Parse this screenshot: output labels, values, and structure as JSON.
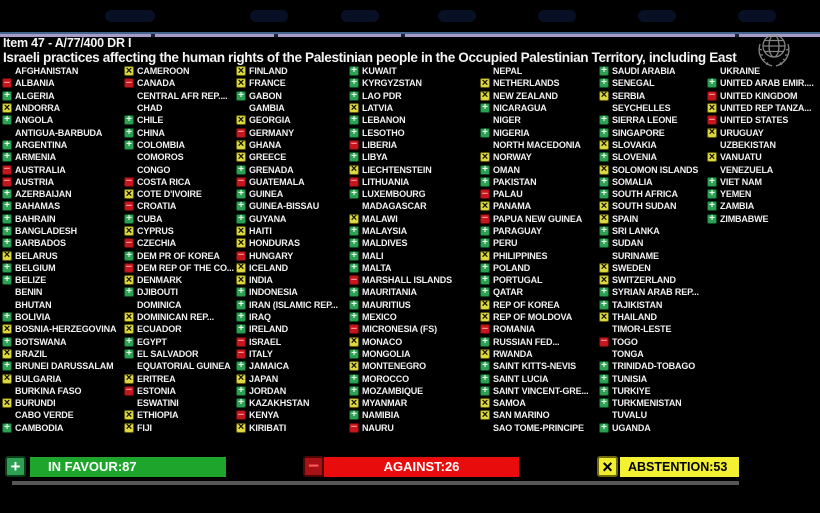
{
  "header": {
    "item_line": "Item 47 - A/77/400 DR I",
    "title_line": "Israeli practices affecting the human rights of the Palestinian people in the Occupied Palestinian Territory, including East"
  },
  "vote_legend": {
    "+": {
      "meaning": "in favour",
      "css": "favour",
      "glyph": "+",
      "color": "#2da153"
    },
    "-": {
      "meaning": "against",
      "css": "against",
      "glyph": "−",
      "color": "#c4161c"
    },
    "x": {
      "meaning": "abstention",
      "css": "abstain",
      "glyph": "×",
      "color": "#ddd83f"
    }
  },
  "columns": [
    [
      [
        "AFGHANISTAN",
        ""
      ],
      [
        "ALBANIA",
        "-"
      ],
      [
        "ALGERIA",
        "+"
      ],
      [
        "ANDORRA",
        "x"
      ],
      [
        "ANGOLA",
        "+"
      ],
      [
        "ANTIGUA-BARBUDA",
        ""
      ],
      [
        "ARGENTINA",
        "+"
      ],
      [
        "ARMENIA",
        "+"
      ],
      [
        "AUSTRALIA",
        "-"
      ],
      [
        "AUSTRIA",
        "-"
      ],
      [
        "AZERBAIJAN",
        "+"
      ],
      [
        "BAHAMAS",
        "+"
      ],
      [
        "BAHRAIN",
        "+"
      ],
      [
        "BANGLADESH",
        "+"
      ],
      [
        "BARBADOS",
        "+"
      ],
      [
        "BELARUS",
        "x"
      ],
      [
        "BELGIUM",
        "+"
      ],
      [
        "BELIZE",
        "+"
      ],
      [
        "BENIN",
        ""
      ],
      [
        "BHUTAN",
        ""
      ],
      [
        "BOLIVIA",
        "+"
      ],
      [
        "BOSNIA-HERZEGOVINA",
        "x"
      ],
      [
        "BOTSWANA",
        "+"
      ],
      [
        "BRAZIL",
        "x"
      ],
      [
        "BRUNEI DARUSSALAM",
        "+"
      ],
      [
        "BULGARIA",
        "x"
      ],
      [
        "BURKINA FASO",
        ""
      ],
      [
        "BURUNDI",
        "x"
      ],
      [
        "CABO VERDE",
        ""
      ],
      [
        "CAMBODIA",
        "+"
      ]
    ],
    [
      [
        "CAMEROON",
        "x"
      ],
      [
        "CANADA",
        "-"
      ],
      [
        "CENTRAL AFR REP....",
        ""
      ],
      [
        "CHAD",
        ""
      ],
      [
        "CHILE",
        "+"
      ],
      [
        "CHINA",
        "+"
      ],
      [
        "COLOMBIA",
        "+"
      ],
      [
        "COMOROS",
        ""
      ],
      [
        "CONGO",
        ""
      ],
      [
        "COSTA RICA",
        "-"
      ],
      [
        "COTE D'IVOIRE",
        "x"
      ],
      [
        "CROATIA",
        "-"
      ],
      [
        "CUBA",
        "+"
      ],
      [
        "CYPRUS",
        "x"
      ],
      [
        "CZECHIA",
        "-"
      ],
      [
        "DEM PR OF KOREA",
        "+"
      ],
      [
        "DEM REP OF THE CO...",
        "-"
      ],
      [
        "DENMARK",
        "x"
      ],
      [
        "DJIBOUTI",
        "+"
      ],
      [
        "DOMINICA",
        ""
      ],
      [
        "DOMINICAN REP...",
        "x"
      ],
      [
        "ECUADOR",
        "x"
      ],
      [
        "EGYPT",
        "+"
      ],
      [
        "EL SALVADOR",
        "+"
      ],
      [
        "EQUATORIAL GUINEA",
        ""
      ],
      [
        "ERITREA",
        "x"
      ],
      [
        "ESTONIA",
        "-"
      ],
      [
        "ESWATINI",
        ""
      ],
      [
        "ETHIOPIA",
        "x"
      ],
      [
        "FIJI",
        "x"
      ]
    ],
    [
      [
        "FINLAND",
        "x"
      ],
      [
        "FRANCE",
        "x"
      ],
      [
        "GABON",
        "+"
      ],
      [
        "GAMBIA",
        ""
      ],
      [
        "GEORGIA",
        "x"
      ],
      [
        "GERMANY",
        "-"
      ],
      [
        "GHANA",
        "x"
      ],
      [
        "GREECE",
        "x"
      ],
      [
        "GRENADA",
        "+"
      ],
      [
        "GUATEMALA",
        "-"
      ],
      [
        "GUINEA",
        "+"
      ],
      [
        "GUINEA-BISSAU",
        "+"
      ],
      [
        "GUYANA",
        "+"
      ],
      [
        "HAITI",
        "x"
      ],
      [
        "HONDURAS",
        "x"
      ],
      [
        "HUNGARY",
        "-"
      ],
      [
        "ICELAND",
        "x"
      ],
      [
        "INDIA",
        "x"
      ],
      [
        "INDONESIA",
        "+"
      ],
      [
        "IRAN (ISLAMIC REP...",
        "+"
      ],
      [
        "IRAQ",
        "+"
      ],
      [
        "IRELAND",
        "+"
      ],
      [
        "ISRAEL",
        "-"
      ],
      [
        "ITALY",
        "-"
      ],
      [
        "JAMAICA",
        "+"
      ],
      [
        "JAPAN",
        "x"
      ],
      [
        "JORDAN",
        "+"
      ],
      [
        "KAZAKHSTAN",
        "+"
      ],
      [
        "KENYA",
        "-"
      ],
      [
        "KIRIBATI",
        "x"
      ]
    ],
    [
      [
        "KUWAIT",
        "+"
      ],
      [
        "KYRGYZSTAN",
        "+"
      ],
      [
        "LAO PDR",
        "+"
      ],
      [
        "LATVIA",
        "x"
      ],
      [
        "LEBANON",
        "+"
      ],
      [
        "LESOTHO",
        "+"
      ],
      [
        "LIBERIA",
        "-"
      ],
      [
        "LIBYA",
        "+"
      ],
      [
        "LIECHTENSTEIN",
        "x"
      ],
      [
        "LITHUANIA",
        "-"
      ],
      [
        "LUXEMBOURG",
        "+"
      ],
      [
        "MADAGASCAR",
        ""
      ],
      [
        "MALAWI",
        "x"
      ],
      [
        "MALAYSIA",
        "+"
      ],
      [
        "MALDIVES",
        "+"
      ],
      [
        "MALI",
        "+"
      ],
      [
        "MALTA",
        "+"
      ],
      [
        "MARSHALL ISLANDS",
        "-"
      ],
      [
        "MAURITANIA",
        "+"
      ],
      [
        "MAURITIUS",
        "+"
      ],
      [
        "MEXICO",
        "+"
      ],
      [
        "MICRONESIA (FS)",
        "-"
      ],
      [
        "MONACO",
        "x"
      ],
      [
        "MONGOLIA",
        "+"
      ],
      [
        "MONTENEGRO",
        "x"
      ],
      [
        "MOROCCO",
        "+"
      ],
      [
        "MOZAMBIQUE",
        "+"
      ],
      [
        "MYANMAR",
        "x"
      ],
      [
        "NAMIBIA",
        "+"
      ],
      [
        "NAURU",
        "-"
      ]
    ],
    [
      [
        "NEPAL",
        ""
      ],
      [
        "NETHERLANDS",
        "x"
      ],
      [
        "NEW ZEALAND",
        "x"
      ],
      [
        "NICARAGUA",
        "+"
      ],
      [
        "NIGER",
        ""
      ],
      [
        "NIGERIA",
        "+"
      ],
      [
        "NORTH MACEDONIA",
        ""
      ],
      [
        "NORWAY",
        "x"
      ],
      [
        "OMAN",
        "+"
      ],
      [
        "PAKISTAN",
        "+"
      ],
      [
        "PALAU",
        "-"
      ],
      [
        "PANAMA",
        "x"
      ],
      [
        "PAPUA NEW GUINEA",
        "-"
      ],
      [
        "PARAGUAY",
        "+"
      ],
      [
        "PERU",
        "+"
      ],
      [
        "PHILIPPINES",
        "x"
      ],
      [
        "POLAND",
        "+"
      ],
      [
        "PORTUGAL",
        "+"
      ],
      [
        "QATAR",
        "+"
      ],
      [
        "REP OF KOREA",
        "x"
      ],
      [
        "REP OF MOLDOVA",
        "x"
      ],
      [
        "ROMANIA",
        "-"
      ],
      [
        "RUSSIAN FED...",
        "+"
      ],
      [
        "RWANDA",
        "x"
      ],
      [
        "SAINT KITTS-NEVIS",
        "+"
      ],
      [
        "SAINT LUCIA",
        "+"
      ],
      [
        "SAINT VINCENT-GRE...",
        "+"
      ],
      [
        "SAMOA",
        "x"
      ],
      [
        "SAN MARINO",
        "x"
      ],
      [
        "SAO TOME-PRINCIPE",
        ""
      ]
    ],
    [
      [
        "SAUDI ARABIA",
        "+"
      ],
      [
        "SENEGAL",
        "+"
      ],
      [
        "SERBIA",
        "x"
      ],
      [
        "SEYCHELLES",
        ""
      ],
      [
        "SIERRA LEONE",
        "+"
      ],
      [
        "SINGAPORE",
        "+"
      ],
      [
        "SLOVAKIA",
        "x"
      ],
      [
        "SLOVENIA",
        "+"
      ],
      [
        "SOLOMON ISLANDS",
        "x"
      ],
      [
        "SOMALIA",
        "+"
      ],
      [
        "SOUTH AFRICA",
        "+"
      ],
      [
        "SOUTH SUDAN",
        "x"
      ],
      [
        "SPAIN",
        "x"
      ],
      [
        "SRI LANKA",
        "+"
      ],
      [
        "SUDAN",
        "+"
      ],
      [
        "SURINAME",
        ""
      ],
      [
        "SWEDEN",
        "x"
      ],
      [
        "SWITZERLAND",
        "x"
      ],
      [
        "SYRIAN ARAB REP...",
        "+"
      ],
      [
        "TAJIKISTAN",
        "+"
      ],
      [
        "THAILAND",
        "x"
      ],
      [
        "TIMOR-LESTE",
        ""
      ],
      [
        "TOGO",
        "-"
      ],
      [
        "TONGA",
        ""
      ],
      [
        "TRINIDAD-TOBAGO",
        "+"
      ],
      [
        "TUNISIA",
        "+"
      ],
      [
        "TURKIYE",
        "+"
      ],
      [
        "TURKMENISTAN",
        "+"
      ],
      [
        "TUVALU",
        ""
      ],
      [
        "UGANDA",
        "+"
      ]
    ],
    [
      [
        "UKRAINE",
        ""
      ],
      [
        "UNITED ARAB EMIR....",
        "+"
      ],
      [
        "UNITED KINGDOM",
        "-"
      ],
      [
        "UNITED REP TANZA...",
        "x"
      ],
      [
        "UNITED STATES",
        "-"
      ],
      [
        "URUGUAY",
        "x"
      ],
      [
        "UZBEKISTAN",
        ""
      ],
      [
        "VANUATU",
        "x"
      ],
      [
        "VENEZUELA",
        ""
      ],
      [
        "VIET NAM",
        "+"
      ],
      [
        "YEMEN",
        "+"
      ],
      [
        "ZAMBIA",
        "+"
      ],
      [
        "ZIMBABWE",
        "+"
      ]
    ]
  ],
  "summary": {
    "favour_label": "IN FAVOUR:87",
    "against_label": "AGAINST:26",
    "abstain_label": "ABSTENTION:53",
    "counts": {
      "in_favour": 87,
      "against": 26,
      "abstention": 53
    }
  },
  "colors": {
    "favour_bar": "#1ea52c",
    "against_bar": "#e80c0c",
    "abstain_bar": "#f4f032",
    "divider_blue": "#44648c",
    "divider_lavender": "#a79bc9"
  }
}
